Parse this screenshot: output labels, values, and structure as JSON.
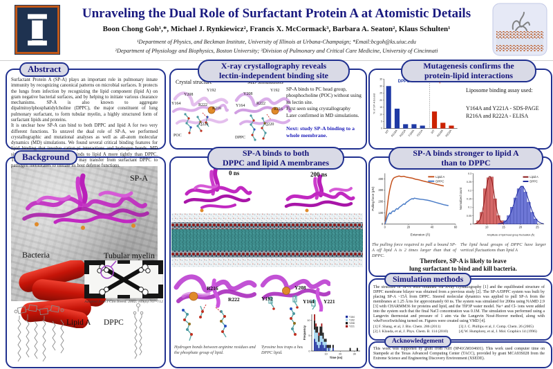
{
  "header": {
    "title": "Unraveling the Dual Role of Surfactant Protein A at Atomistic Details",
    "authors": "Boon Chong Goh¹,*, Michael J. Rynkiewicz², Francis X. McCormack³, Barbara A. Seaton², Klaus Schulten¹",
    "affiliation1": "¹Department of Physics, and Beckman Institute, University of Illinois at Urbana-Champaign; *Email:bcgoh@ks.uiuc.edu",
    "affiliation2": "²Department of Physiology and Biophysics, Boston University; ³Division of Pulmonary and Critical Care Medicine, University of Cincinnati"
  },
  "abstract": {
    "title": "Abstract",
    "p1": "Surfactant Protein A (SP-A) plays an important role in pulmonary innate immunity by recognizing canonical patterns on microbial surfaces. It protects the lungs from infection by recognizing the lipid component (lipid A) on gram negative bacterial surfaces, and by helping to initiate various clearance mechanisms. SP-A is also known to aggregate dipalmitoylphosphatidylcholine (DPPC), the major constituent of lung pulmonary surfactant, to form tubular myelin, a highly structured form of surfactant lipids and proteins.",
    "p2": "It is unclear how SP-A can bind to both DPPC and lipid A for two very different functions. To unravel the dual role of SP-A, we performed crystallographic and mutational analyses as well as all-atom molecular dynamics (MD) simulations. We found several critical binding features for lipid binding that involve cation-pi interactions and hydrogen bonds. MD simulations revealed that SP-A binds to lipid A more tightly than DPPC. These results suggest that SP-A may transfer from surfactant DPPC to pathogen membranes to initiate its host defense functions."
  },
  "xray": {
    "title_line1": "X-ray crystallography reveals",
    "title_line2": "lectin-independent binding site",
    "left_label": "Crystal structure",
    "right_label": "MD simulations",
    "residues_left": [
      "Y192",
      "Y208",
      "Y164",
      "R222",
      "R216",
      "Q220",
      "POC"
    ],
    "residues_right": [
      "Y192",
      "Y208",
      "Y164",
      "R222",
      "R216",
      "Q220",
      "DPPC"
    ],
    "desc1": "SP-A binds to PC head group, phosphocholine (POC) without using its lectin site.",
    "desc2": "First seen using crystallography",
    "desc3": "Later confirmed in MD simulations.",
    "next_note": "Next:  study SP-A binding to a whole membrane."
  },
  "mutagenesis": {
    "title_line1": "Mutagenesis confirms the",
    "title_line2": "protein-lipid interactions",
    "note1": "Liposome binding assay used:",
    "note2": "Y164A and Y221A  - SDS-PAGE",
    "note3": "R216A and R222A  - ELISA"
  },
  "background": {
    "title": "Background",
    "spa_label": "SP-A",
    "bacteria_label": "Bacteria",
    "myelin_label": "Tubular myelin",
    "citation": "Adopted from J Clin Invest. 2002; 109(6):707–712",
    "lipid_a_label": "Lipid A",
    "dppc_label": "DPPC"
  },
  "membrane_panel": {
    "title_line1": "SP-A binds to both",
    "title_line2": "DPPC and lipid A membranes",
    "t0": "0 ns",
    "t200": "200 ns",
    "labels": [
      "R216",
      "R222",
      "Y192",
      "Y208",
      "Y164",
      "Y221"
    ],
    "caption_left": "Hydrogen bonds between arginine residues and the phosphate group of lipid.",
    "caption_right": "Tyrosine box traps a headgroup of DPPC lipid."
  },
  "binding_panel": {
    "title_line1": "SP-A binds stronger to lipid A",
    "title_line2": "than to DPPC",
    "caption_left": "The pulling force required to pull a bound SP-A off lipid A is 2 times larger than that of DPPC.",
    "caption_right": "The lipid head groups of DPPC have larger vertical fluctuations than lipid A",
    "conclusion_line1": "Therefore, SP-A is likely to leave",
    "conclusion_line2": "lung surfactant to bind and kill bacteria."
  },
  "methods": {
    "title": "Simulation methods",
    "body": "The structure of SP-A were obtained via X-ray crystallography [1] and the equilibrated structure of DPPC membrane bilayer was obtained from a previous study [2]. The SP-A/DPPC system was built by placing SP-A ~15Å from DPPC. Steered molecular dynamics was applied to pull SP-A from the membranes at 1.25 Å/ns for approximately 60 ns. The system was simulated for 200ns using NAMD 2.9 [3] with CHARMM36 for proteins and lipid, and the TIP3P water model. Na+ and Cl- ions were added into the system such that the final NaCl concentration was 0.1M. The simulation was performed using a Langevin thermostat and pressure of 1 atm via the Langevin Nosé-Hoover method, along with vdwForceSwitching turned on. Figures were created using VMD [4].",
    "ref1": "[1] F. Shang, et al, J. Bio. Chem. 286 (2011)",
    "ref2": "[2] J. Klauda, et al, J. Phys. Chem. B. 114 (2010)",
    "ref3": "[3] J. C. Phillips et al, J. Comp. Chem. 26 (2005)",
    "ref4": "[4] W. Humphrey, et al, J. Mol. Graphics 14 (1996)"
  },
  "acknowledgement": {
    "title": "Acknowledgement",
    "body": "This work was supported by grant from NIH (9P41GM104601). This work used computer time on Stampede at the Texas Advanced Computing Center (TACC), provided by grant MCA93S028 from the Extreme Science and Engineering Discovery Environment (XSEDE)."
  },
  "colors": {
    "navy_border": "#20308f",
    "title_navy": "#19197f",
    "dppc_blue": "#1f3aa5",
    "lipid_red": "#cc2200",
    "protein_magenta": "#c128c1",
    "calcium_orange": "#e08a2a"
  },
  "chart_data": [
    {
      "id": "mutagenesis",
      "type": "bar",
      "ylabel": "% of SP-A bound",
      "ylim": [
        0,
        35
      ],
      "yticks": [
        0,
        5,
        10,
        15,
        20,
        25,
        30,
        35
      ],
      "groups": [
        {
          "name": "DPPC",
          "color": "#1f3aa5",
          "categories": [
            "WT",
            "R216A",
            "R222A",
            "Y164A",
            "Y221A"
          ],
          "values": [
            30,
            14,
            3,
            3,
            2
          ]
        },
        {
          "name": "Lipid A",
          "color": "#cc2200",
          "categories": [
            "WT",
            "R216A",
            "R222A"
          ],
          "values": [
            12,
            4,
            2
          ]
        }
      ]
    },
    {
      "id": "pulling_force",
      "type": "line",
      "xlabel": "Extension (Å)",
      "ylabel": "Pulling force (pN)",
      "xlim": [
        0,
        60
      ],
      "ylim": [
        0,
        450
      ],
      "xticks": [
        0,
        20,
        40,
        60
      ],
      "yticks": [
        0,
        100,
        200,
        300,
        400
      ],
      "legend_position": "top-right",
      "series": [
        {
          "name": "Lipid A",
          "color": "#c4501b",
          "points": [
            [
              0,
              0
            ],
            [
              1,
              70
            ],
            [
              2,
              150
            ],
            [
              3,
              235
            ],
            [
              4,
              300
            ],
            [
              5,
              345
            ],
            [
              6,
              382
            ],
            [
              7,
              402
            ],
            [
              8,
              412
            ],
            [
              10,
              420
            ],
            [
              12,
              426
            ],
            [
              14,
              421
            ],
            [
              16,
              424
            ],
            [
              18,
              417
            ],
            [
              20,
              413
            ],
            [
              23,
              408
            ],
            [
              26,
              398
            ],
            [
              29,
              392
            ],
            [
              32,
              383
            ],
            [
              35,
              376
            ],
            [
              38,
              368
            ],
            [
              41,
              360
            ],
            [
              44,
              352
            ],
            [
              47,
              345
            ],
            [
              50,
              338
            ]
          ]
        },
        {
          "name": "DPPC",
          "color": "#4a7cc7",
          "points": [
            [
              0,
              0
            ],
            [
              1,
              30
            ],
            [
              2,
              60
            ],
            [
              3,
              85
            ],
            [
              4,
              100
            ],
            [
              5,
              92
            ],
            [
              6,
              110
            ],
            [
              7,
              118
            ],
            [
              8,
              112
            ],
            [
              9,
              128
            ],
            [
              10,
              138
            ],
            [
              11,
              132
            ],
            [
              12,
              148
            ],
            [
              13,
              155
            ],
            [
              14,
              162
            ],
            [
              15,
              172
            ],
            [
              16,
              180
            ],
            [
              17,
              175
            ],
            [
              18,
              192
            ],
            [
              19,
              198
            ],
            [
              20,
              205
            ],
            [
              21,
              214
            ],
            [
              22,
              220
            ],
            [
              23,
              226
            ],
            [
              24,
              222
            ],
            [
              25,
              230
            ],
            [
              26,
              228
            ],
            [
              28,
              224
            ],
            [
              30,
              221
            ],
            [
              32,
              219
            ],
            [
              34,
              215
            ],
            [
              36,
              212
            ],
            [
              38,
              208
            ],
            [
              40,
              202
            ],
            [
              42,
              196
            ],
            [
              44,
              190
            ],
            [
              46,
              184
            ],
            [
              48,
              178
            ],
            [
              50,
              172
            ],
            [
              52,
              168
            ],
            [
              54,
              164
            ]
          ]
        }
      ]
    },
    {
      "id": "fluctuation",
      "type": "histogram",
      "xlabel": "Amplitude of lipid head group fluctuation (Å)",
      "ylabel": "Normalized count",
      "xlim": [
        6,
        27
      ],
      "ylim": [
        0,
        0.3
      ],
      "xticks": [
        10,
        15,
        20,
        25
      ],
      "yticks": [
        0,
        0.05,
        0.1,
        0.15,
        0.2,
        0.25,
        0.3
      ],
      "series": [
        {
          "name": "Lipid A",
          "color": "#d05050",
          "edge": "#8a1616",
          "bin_start": 7,
          "bin_width": 1,
          "counts": [
            0.02,
            0.07,
            0.21,
            0.275,
            0.28,
            0.15,
            0.05,
            0.02
          ],
          "fit": {
            "mu": 10.9,
            "sigma": 1.35,
            "amp": 0.285
          }
        },
        {
          "name": "DPPC",
          "color": "#5560d0",
          "edge": "#1e2a9e",
          "bin_start": 15,
          "bin_width": 1,
          "counts": [
            0.02,
            0.05,
            0.1,
            0.155,
            0.21,
            0.225,
            0.19,
            0.13,
            0.07,
            0.03
          ],
          "fit": {
            "mu": 20.4,
            "sigma": 2.1,
            "amp": 0.225
          }
        }
      ]
    },
    {
      "id": "tyrosine_contacts",
      "type": "stacked-bar",
      "xlabel": "Time (ns)",
      "ylabel": "Frequency",
      "xlim": [
        0,
        34
      ],
      "ylim": [
        0,
        12
      ],
      "xticks": [
        10,
        20,
        30
      ],
      "yticks": [
        0,
        5,
        10
      ],
      "series_names": [
        "Y164",
        "Y192",
        "Y208",
        "Y221"
      ],
      "colors": [
        "#1c2f9e",
        "#9fd4f0",
        "#111111",
        "#a31212"
      ],
      "bars": [
        {
          "x": 2,
          "v": [
            4,
            3,
            3,
            2
          ]
        },
        {
          "x": 3,
          "v": [
            3,
            3,
            2,
            1
          ]
        },
        {
          "x": 4,
          "v": [
            2,
            4,
            2,
            0
          ]
        },
        {
          "x": 5,
          "v": [
            1,
            2,
            2,
            1
          ]
        },
        {
          "x": 6,
          "v": [
            2,
            3,
            3,
            0
          ]
        },
        {
          "x": 7,
          "v": [
            3,
            2,
            3,
            1
          ]
        },
        {
          "x": 8,
          "v": [
            2,
            2,
            2,
            0
          ]
        },
        {
          "x": 9,
          "v": [
            1,
            2,
            1,
            0
          ]
        },
        {
          "x": 10,
          "v": [
            2,
            1,
            1,
            0
          ]
        },
        {
          "x": 11,
          "v": [
            0,
            1,
            1,
            0
          ]
        },
        {
          "x": 12,
          "v": [
            1,
            0,
            1,
            0
          ]
        },
        {
          "x": 13,
          "v": [
            0,
            1,
            1,
            0
          ]
        },
        {
          "x": 15,
          "v": [
            1,
            0,
            1,
            0
          ]
        },
        {
          "x": 27,
          "v": [
            0,
            0,
            1,
            0
          ]
        },
        {
          "x": 32,
          "v": [
            0,
            0,
            1,
            0
          ]
        }
      ]
    }
  ]
}
